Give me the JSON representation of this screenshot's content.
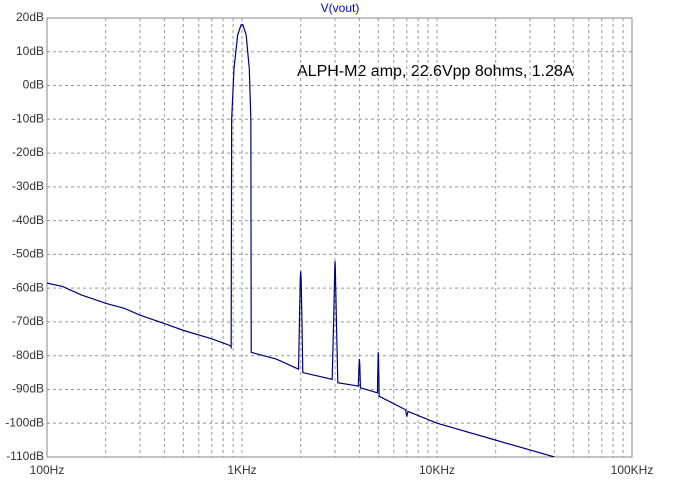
{
  "chart_data": {
    "type": "line",
    "annotation": "ALPH-M2 amp, 22.6Vpp 8ohms, 1.28A",
    "x": [
      100,
      120,
      150,
      200,
      250,
      300,
      400,
      500,
      700,
      870,
      880,
      885,
      910,
      950,
      990,
      1010,
      1050,
      1090,
      1110,
      1115,
      1500,
      1950,
      1970,
      1990,
      2000,
      2010,
      2030,
      2050,
      2900,
      2950,
      2990,
      3000,
      3010,
      3050,
      3100,
      3950,
      3980,
      4000,
      4020,
      4050,
      4950,
      4980,
      5000,
      5020,
      5050,
      6900,
      7000,
      7100,
      10000,
      20000,
      40000
    ],
    "series": [
      {
        "name": "V(vout)",
        "color": "#000080",
        "values": [
          -58.5,
          -59.5,
          -62,
          -64.5,
          -66,
          -68,
          -70.5,
          -72.5,
          -75,
          -77,
          -77.5,
          -10,
          5,
          15,
          18,
          18,
          15,
          5,
          -10,
          -79,
          -81,
          -84,
          -70,
          -57,
          -55,
          -57,
          -70,
          -85,
          -87,
          -70,
          -54,
          -52,
          -54,
          -70,
          -88,
          -89,
          -83,
          -81,
          -83,
          -89.5,
          -91,
          -82,
          -79,
          -82,
          -92,
          -96,
          -98,
          -96.5,
          -100,
          -105,
          -110
        ]
      }
    ],
    "xlog": true,
    "xlim": [
      100,
      100000
    ],
    "xticks": [
      {
        "value": 100,
        "label": "100Hz"
      },
      {
        "value": 1000,
        "label": "1KHz"
      },
      {
        "value": 10000,
        "label": "10KHz"
      },
      {
        "value": 100000,
        "label": "100KHz"
      }
    ],
    "ylim": [
      -110,
      20
    ],
    "yticks": [
      {
        "value": 20,
        "label": "20dB"
      },
      {
        "value": 10,
        "label": "10dB"
      },
      {
        "value": 0,
        "label": "0dB"
      },
      {
        "value": -10,
        "label": "-10dB"
      },
      {
        "value": -20,
        "label": "-20dB"
      },
      {
        "value": -30,
        "label": "-30dB"
      },
      {
        "value": -40,
        "label": "-40dB"
      },
      {
        "value": -50,
        "label": "-50dB"
      },
      {
        "value": -60,
        "label": "-60dB"
      },
      {
        "value": -70,
        "label": "-70dB"
      },
      {
        "value": -80,
        "label": "-80dB"
      },
      {
        "value": -90,
        "label": "-90dB"
      },
      {
        "value": -100,
        "label": "-100dB"
      },
      {
        "value": -110,
        "label": "-110dB"
      }
    ],
    "grid": true
  }
}
